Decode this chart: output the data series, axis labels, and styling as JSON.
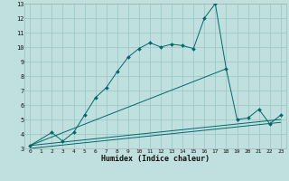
{
  "xlabel": "Humidex (Indice chaleur)",
  "bg_color": "#c0e0e0",
  "grid_color": "#a0c8c8",
  "line_color": "#006868",
  "xlim": [
    -0.5,
    23.5
  ],
  "ylim": [
    3,
    13
  ],
  "xticks": [
    0,
    1,
    2,
    3,
    4,
    5,
    6,
    7,
    8,
    9,
    10,
    11,
    12,
    13,
    14,
    15,
    16,
    17,
    18,
    19,
    20,
    21,
    22,
    23
  ],
  "yticks": [
    3,
    4,
    5,
    6,
    7,
    8,
    9,
    10,
    11,
    12,
    13
  ],
  "series1_x": [
    0,
    2,
    3,
    4,
    5,
    6,
    7,
    8,
    9,
    10,
    11,
    12,
    13,
    14,
    15,
    16,
    17,
    18,
    19,
    20,
    21,
    22,
    23
  ],
  "series1_y": [
    3.2,
    4.1,
    3.5,
    4.1,
    5.3,
    6.5,
    7.2,
    8.3,
    9.3,
    9.9,
    10.3,
    10.0,
    10.2,
    10.1,
    9.9,
    12.0,
    13.0,
    8.5,
    5.0,
    5.1,
    5.7,
    4.7,
    5.3
  ],
  "series2_x": [
    0,
    18
  ],
  "series2_y": [
    3.2,
    8.5
  ],
  "series3_x": [
    0,
    23
  ],
  "series3_y": [
    3.2,
    5.0
  ],
  "series4_x": [
    0,
    23
  ],
  "series4_y": [
    3.0,
    4.8
  ]
}
